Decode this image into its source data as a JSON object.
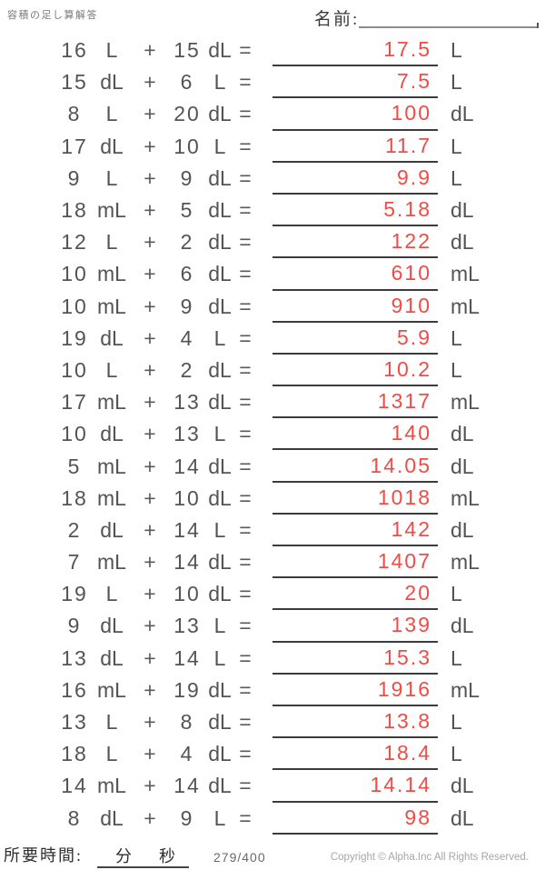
{
  "page": {
    "title": "容積の足し算解答",
    "name_label": "名前:",
    "plus_sign": "+",
    "equals_sign": "="
  },
  "footer": {
    "time_label": "所要時間:",
    "minutes_label": "分",
    "seconds_label": "秒",
    "page_number": "279/400",
    "copyright": "Copyright © Alpha.Inc All Rights Reserved."
  },
  "colors": {
    "answer_red": "#f04b45",
    "problem_text": "#545454",
    "answer_line": "#3c3c3c"
  },
  "problems": [
    {
      "a": "16",
      "unit_a": "L",
      "b": "15",
      "unit_b": "dL",
      "answer": "17.5",
      "unit_answer": "L"
    },
    {
      "a": "15",
      "unit_a": "dL",
      "b": "6",
      "unit_b": "L",
      "answer": "7.5",
      "unit_answer": "L"
    },
    {
      "a": "8",
      "unit_a": "L",
      "b": "20",
      "unit_b": "dL",
      "answer": "100",
      "unit_answer": "dL"
    },
    {
      "a": "17",
      "unit_a": "dL",
      "b": "10",
      "unit_b": "L",
      "answer": "11.7",
      "unit_answer": "L"
    },
    {
      "a": "9",
      "unit_a": "L",
      "b": "9",
      "unit_b": "dL",
      "answer": "9.9",
      "unit_answer": "L"
    },
    {
      "a": "18",
      "unit_a": "mL",
      "b": "5",
      "unit_b": "dL",
      "answer": "5.18",
      "unit_answer": "dL"
    },
    {
      "a": "12",
      "unit_a": "L",
      "b": "2",
      "unit_b": "dL",
      "answer": "122",
      "unit_answer": "dL"
    },
    {
      "a": "10",
      "unit_a": "mL",
      "b": "6",
      "unit_b": "dL",
      "answer": "610",
      "unit_answer": "mL"
    },
    {
      "a": "10",
      "unit_a": "mL",
      "b": "9",
      "unit_b": "dL",
      "answer": "910",
      "unit_answer": "mL"
    },
    {
      "a": "19",
      "unit_a": "dL",
      "b": "4",
      "unit_b": "L",
      "answer": "5.9",
      "unit_answer": "L"
    },
    {
      "a": "10",
      "unit_a": "L",
      "b": "2",
      "unit_b": "dL",
      "answer": "10.2",
      "unit_answer": "L"
    },
    {
      "a": "17",
      "unit_a": "mL",
      "b": "13",
      "unit_b": "dL",
      "answer": "1317",
      "unit_answer": "mL"
    },
    {
      "a": "10",
      "unit_a": "dL",
      "b": "13",
      "unit_b": "L",
      "answer": "140",
      "unit_answer": "dL"
    },
    {
      "a": "5",
      "unit_a": "mL",
      "b": "14",
      "unit_b": "dL",
      "answer": "14.05",
      "unit_answer": "dL"
    },
    {
      "a": "18",
      "unit_a": "mL",
      "b": "10",
      "unit_b": "dL",
      "answer": "1018",
      "unit_answer": "mL"
    },
    {
      "a": "2",
      "unit_a": "dL",
      "b": "14",
      "unit_b": "L",
      "answer": "142",
      "unit_answer": "dL"
    },
    {
      "a": "7",
      "unit_a": "mL",
      "b": "14",
      "unit_b": "dL",
      "answer": "1407",
      "unit_answer": "mL"
    },
    {
      "a": "19",
      "unit_a": "L",
      "b": "10",
      "unit_b": "dL",
      "answer": "20",
      "unit_answer": "L"
    },
    {
      "a": "9",
      "unit_a": "dL",
      "b": "13",
      "unit_b": "L",
      "answer": "139",
      "unit_answer": "dL"
    },
    {
      "a": "13",
      "unit_a": "dL",
      "b": "14",
      "unit_b": "L",
      "answer": "15.3",
      "unit_answer": "L"
    },
    {
      "a": "16",
      "unit_a": "mL",
      "b": "19",
      "unit_b": "dL",
      "answer": "1916",
      "unit_answer": "mL"
    },
    {
      "a": "13",
      "unit_a": "L",
      "b": "8",
      "unit_b": "dL",
      "answer": "13.8",
      "unit_answer": "L"
    },
    {
      "a": "18",
      "unit_a": "L",
      "b": "4",
      "unit_b": "dL",
      "answer": "18.4",
      "unit_answer": "L"
    },
    {
      "a": "14",
      "unit_a": "mL",
      "b": "14",
      "unit_b": "dL",
      "answer": "14.14",
      "unit_answer": "dL"
    },
    {
      "a": "8",
      "unit_a": "dL",
      "b": "9",
      "unit_b": "L",
      "answer": "98",
      "unit_answer": "dL"
    }
  ]
}
